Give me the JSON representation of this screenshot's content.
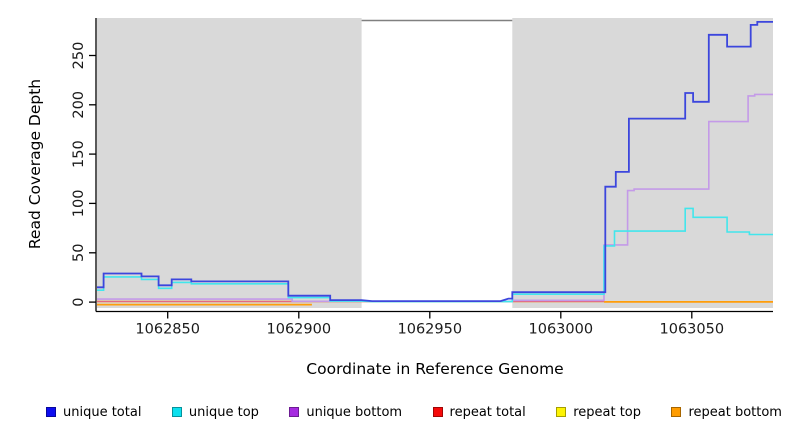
{
  "figure": {
    "x_axis_title": "Coordinate in Reference Genome",
    "y_axis_title": "Read Coverage Depth"
  },
  "legend": {
    "items": [
      {
        "label": "unique total",
        "swatch_color": "#0d0df0"
      },
      {
        "label": "unique top",
        "swatch_color": "#0ce0ee"
      },
      {
        "label": "unique bottom",
        "swatch_color": "#a62be0"
      },
      {
        "label": "repeat total",
        "swatch_color": "#f60a0a"
      },
      {
        "label": "repeat top",
        "swatch_color": "#fdf303"
      },
      {
        "label": "repeat bottom",
        "swatch_color": "#ff9c00"
      }
    ]
  },
  "chart_data": {
    "type": "line",
    "subtype": "step-coverage",
    "title": "",
    "xlabel": "Coordinate in Reference Genome",
    "ylabel": "Read Coverage Depth",
    "xlim": [
      1062823,
      1063081
    ],
    "ylim": [
      -6,
      288
    ],
    "x_ticks": [
      1062850,
      1062900,
      1062950,
      1063000,
      1063050
    ],
    "y_ticks": [
      0,
      50,
      100,
      150,
      200,
      250
    ],
    "grid": false,
    "legend_position": "bottom",
    "panel_bg": "#d9d9d9",
    "axis_color": "#000000",
    "tick_label_color": "#1a1a1a",
    "mask_region": {
      "x_start": 1062924,
      "x_end": 1062981.5,
      "fill": "#ffffff",
      "border_top_color": "#808080"
    },
    "series": [
      {
        "name": "repeat top",
        "color": "#f2f20a",
        "line_width": 1.6,
        "segments": [
          [
            [
              1062823,
              0.6
            ],
            [
              1063016.5,
              0.6
            ]
          ]
        ]
      },
      {
        "name": "repeat total",
        "color": "#e5687f",
        "line_width": 1.6,
        "segments": [
          [
            [
              1062823,
              0.6
            ],
            [
              1063016.5,
              0.6
            ]
          ]
        ]
      },
      {
        "name": "repeat bottom",
        "color": "#ff9d0a",
        "line_width": 1.8,
        "segments": [
          [
            [
              1062823,
              -2.6
            ],
            [
              1062905,
              -2.6
            ]
          ],
          [
            [
              1063016.5,
              0.2
            ],
            [
              1063081,
              0.2
            ]
          ]
        ]
      },
      {
        "name": "unique bottom",
        "color": "#c49ae8",
        "line_width": 1.6,
        "segments": [
          [
            [
              1062823,
              3
            ],
            [
              1062897.5,
              3
            ],
            [
              1062897.5,
              0.8
            ],
            [
              1062981.5,
              0.8
            ],
            [
              1062981.5,
              1.8
            ],
            [
              1063016.5,
              1.8
            ],
            [
              1063016.5,
              58
            ],
            [
              1063025.5,
              58
            ],
            [
              1063025.5,
              113
            ],
            [
              1063028,
              113
            ],
            [
              1063028,
              114.5
            ],
            [
              1063056.5,
              114.5
            ],
            [
              1063056.5,
              183
            ],
            [
              1063071.5,
              183
            ],
            [
              1063071.5,
              209
            ],
            [
              1063074,
              209
            ],
            [
              1063074,
              210.5
            ],
            [
              1063081,
              210.5
            ]
          ]
        ]
      },
      {
        "name": "unique top",
        "color": "#42e6ec",
        "line_width": 1.6,
        "segments": [
          [
            [
              1062823,
              12
            ],
            [
              1062825.5,
              12
            ],
            [
              1062825.5,
              25.5
            ],
            [
              1062840,
              25.5
            ],
            [
              1062840,
              23
            ],
            [
              1062846.5,
              23
            ],
            [
              1062846.5,
              14
            ],
            [
              1062851.5,
              14
            ],
            [
              1062851.5,
              20
            ],
            [
              1062859,
              20
            ],
            [
              1062859,
              18.5
            ],
            [
              1062896,
              18.5
            ],
            [
              1062896,
              4.5
            ],
            [
              1062912,
              4.5
            ],
            [
              1062912,
              1
            ],
            [
              1062924,
              1
            ],
            [
              1062928,
              0.5
            ],
            [
              1062981.5,
              0.5
            ],
            [
              1062981.5,
              8
            ],
            [
              1063016.5,
              8
            ],
            [
              1063016.5,
              57
            ],
            [
              1063020.5,
              57
            ],
            [
              1063020.5,
              72
            ],
            [
              1063047.5,
              72
            ],
            [
              1063047.5,
              95
            ],
            [
              1063050.5,
              95
            ],
            [
              1063050.5,
              86
            ],
            [
              1063063.5,
              86
            ],
            [
              1063063.5,
              71
            ],
            [
              1063072,
              71
            ],
            [
              1063072,
              68.5
            ],
            [
              1063081,
              68.5
            ]
          ]
        ]
      },
      {
        "name": "unique total",
        "color": "#3c46dd",
        "line_width": 1.8,
        "segments": [
          [
            [
              1062823,
              15
            ],
            [
              1062825.5,
              15
            ],
            [
              1062825.5,
              29
            ],
            [
              1062840,
              29
            ],
            [
              1062840,
              26
            ],
            [
              1062846.5,
              26
            ],
            [
              1062846.5,
              17
            ],
            [
              1062851.5,
              17
            ],
            [
              1062851.5,
              23
            ],
            [
              1062859,
              23
            ],
            [
              1062859,
              21
            ],
            [
              1062896,
              21
            ],
            [
              1062896,
              6.5
            ],
            [
              1062912,
              6.5
            ],
            [
              1062912,
              2
            ],
            [
              1062924,
              2
            ],
            [
              1062928,
              1
            ],
            [
              1062977,
              1
            ],
            [
              1062980,
              3.5
            ],
            [
              1062981.5,
              3.5
            ],
            [
              1062981.5,
              10
            ],
            [
              1063017,
              10
            ],
            [
              1063017,
              117
            ],
            [
              1063021,
              117
            ],
            [
              1063021,
              132
            ],
            [
              1063026,
              132
            ],
            [
              1063026,
              186
            ],
            [
              1063047.5,
              186
            ],
            [
              1063047.5,
              212
            ],
            [
              1063050.5,
              212
            ],
            [
              1063050.5,
              203
            ],
            [
              1063056.5,
              203
            ],
            [
              1063056.5,
              271
            ],
            [
              1063063.5,
              271
            ],
            [
              1063063.5,
              259
            ],
            [
              1063072.5,
              259
            ],
            [
              1063072.5,
              281
            ],
            [
              1063075,
              281
            ],
            [
              1063075,
              284
            ],
            [
              1063081,
              284
            ]
          ]
        ]
      }
    ]
  }
}
